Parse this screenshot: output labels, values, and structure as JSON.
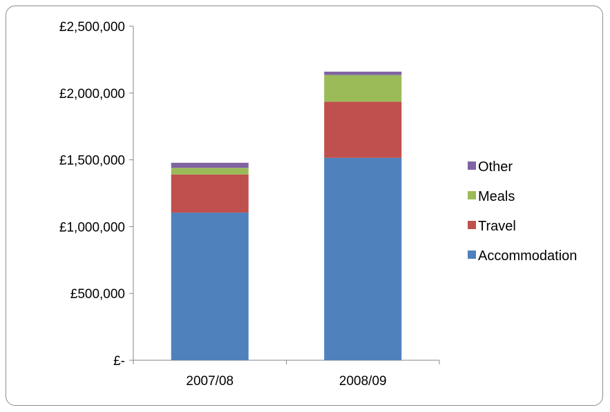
{
  "chart_data": {
    "type": "bar",
    "stacked": true,
    "categories": [
      "2007/08",
      "2008/09"
    ],
    "series": [
      {
        "name": "Accommodation",
        "color": "#4f81bd",
        "values": [
          1105000,
          1515000
        ]
      },
      {
        "name": "Travel",
        "color": "#c0504d",
        "values": [
          285000,
          420000
        ]
      },
      {
        "name": "Meals",
        "color": "#9bbb59",
        "values": [
          50000,
          200000
        ]
      },
      {
        "name": "Other",
        "color": "#8064a2",
        "values": [
          38000,
          25000
        ]
      }
    ],
    "yticks": [
      0,
      500000,
      1000000,
      1500000,
      2000000,
      2500000
    ],
    "ytick_labels": [
      "£-",
      "£500,000",
      "£1,000,000",
      "£1,500,000",
      "£2,000,000",
      "£2,500,000"
    ],
    "ylim": [
      0,
      2500000
    ],
    "grid": false,
    "legend_position": "right",
    "legend_order": [
      "Other",
      "Meals",
      "Travel",
      "Accommodation"
    ]
  }
}
